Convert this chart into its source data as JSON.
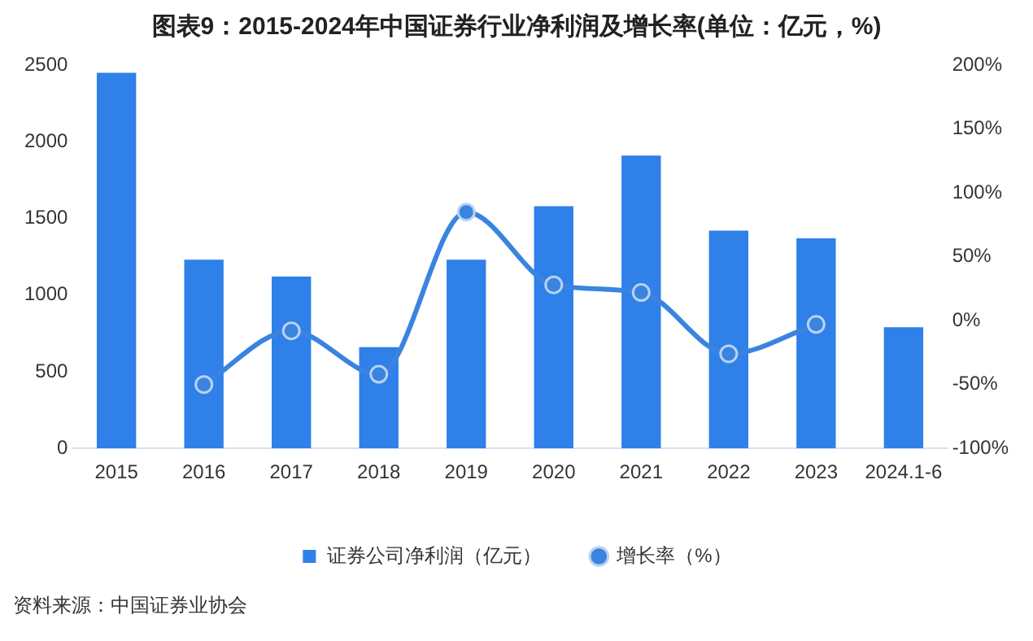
{
  "chart_data": {
    "type": "bar",
    "title": "图表9：2015-2024年中国证券行业净利润及增长率(单位：亿元，%)",
    "categories": [
      "2015",
      "2016",
      "2017",
      "2018",
      "2019",
      "2020",
      "2021",
      "2022",
      "2023",
      "2024.1-6"
    ],
    "series": [
      {
        "name": "证券公司净利润（亿元）",
        "color": "#2f80e8",
        "values": [
          2450,
          1230,
          1120,
          660,
          1230,
          1580,
          1910,
          1420,
          1370,
          790
        ]
      },
      {
        "name": "增长率（%）",
        "type": "line",
        "axis": "y2",
        "color": "#3a84e0",
        "values": [
          null,
          -50,
          -8,
          -42,
          85,
          28,
          22,
          -26,
          -3,
          null
        ]
      }
    ],
    "ylim": [
      0,
      2500
    ],
    "yticks": [
      0,
      500,
      1000,
      1500,
      2000,
      2500
    ],
    "y2lim": [
      -100,
      200
    ],
    "y2ticks": [
      {
        "value": -100,
        "label": "-100%"
      },
      {
        "value": -50,
        "label": "-50%"
      },
      {
        "value": 0,
        "label": "0%"
      },
      {
        "value": 50,
        "label": "50%"
      },
      {
        "value": 100,
        "label": "100%"
      },
      {
        "value": 150,
        "label": "150%"
      },
      {
        "value": 200,
        "label": "200%"
      }
    ],
    "grid": false,
    "legend": "bottom",
    "marker": "circle",
    "annotations": [
      "资料来源：中国证券业协会"
    ]
  }
}
